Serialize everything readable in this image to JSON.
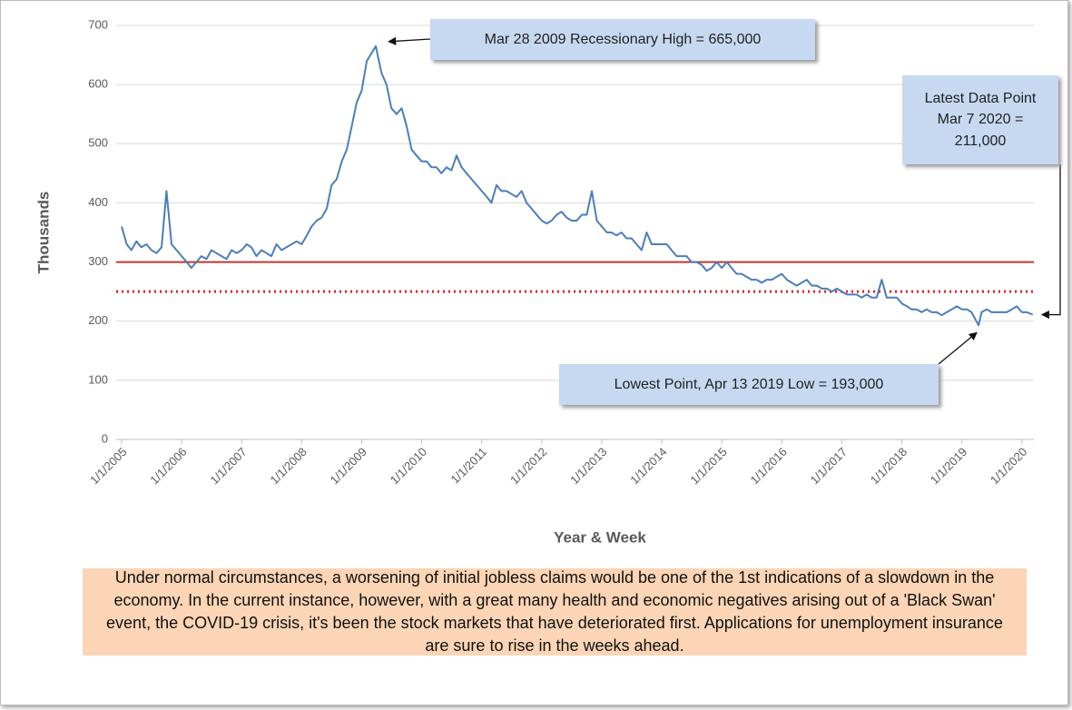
{
  "chart_data": {
    "type": "line",
    "y_label": "Thousands",
    "x_label": "Year & Week",
    "xlim": [
      "1/1/2005",
      "3/14/2020"
    ],
    "xticks": [
      "1/1/2005",
      "1/1/2006",
      "1/1/2007",
      "1/1/2008",
      "1/1/2009",
      "1/1/2010",
      "1/1/2011",
      "1/1/2012",
      "1/1/2013",
      "1/1/2014",
      "1/1/2015",
      "1/1/2016",
      "1/1/2017",
      "1/1/2018",
      "1/1/2019",
      "1/1/2020"
    ],
    "ylim": [
      0,
      700
    ],
    "yticks": [
      0,
      100,
      200,
      300,
      400,
      500,
      600,
      700
    ],
    "grid": true,
    "x": [
      "1/1/2005",
      "2/1/2005",
      "3/1/2005",
      "4/1/2005",
      "5/1/2005",
      "6/1/2005",
      "7/1/2005",
      "8/1/2005",
      "9/1/2005",
      "10/1/2005",
      "11/1/2005",
      "12/1/2005",
      "1/1/2006",
      "2/1/2006",
      "3/1/2006",
      "4/1/2006",
      "5/1/2006",
      "6/1/2006",
      "7/1/2006",
      "8/1/2006",
      "9/1/2006",
      "10/1/2006",
      "11/1/2006",
      "12/1/2006",
      "1/1/2007",
      "2/1/2007",
      "3/1/2007",
      "4/1/2007",
      "5/1/2007",
      "6/1/2007",
      "7/1/2007",
      "8/1/2007",
      "9/1/2007",
      "10/1/2007",
      "11/1/2007",
      "12/1/2007",
      "1/1/2008",
      "2/1/2008",
      "3/1/2008",
      "4/1/2008",
      "5/1/2008",
      "6/1/2008",
      "7/1/2008",
      "8/1/2008",
      "9/1/2008",
      "10/1/2008",
      "11/1/2008",
      "12/1/2008",
      "1/1/2009",
      "2/1/2009",
      "3/28/2009",
      "5/1/2009",
      "6/1/2009",
      "7/1/2009",
      "8/1/2009",
      "9/1/2009",
      "10/1/2009",
      "11/1/2009",
      "12/1/2009",
      "1/1/2010",
      "2/1/2010",
      "3/1/2010",
      "4/1/2010",
      "5/1/2010",
      "6/1/2010",
      "7/1/2010",
      "8/1/2010",
      "9/1/2010",
      "10/1/2010",
      "11/1/2010",
      "12/1/2010",
      "1/1/2011",
      "2/1/2011",
      "3/1/2011",
      "4/1/2011",
      "5/1/2011",
      "6/1/2011",
      "7/1/2011",
      "8/1/2011",
      "9/1/2011",
      "10/1/2011",
      "11/1/2011",
      "12/1/2011",
      "1/1/2012",
      "2/1/2012",
      "3/1/2012",
      "4/1/2012",
      "5/1/2012",
      "6/1/2012",
      "7/1/2012",
      "8/1/2012",
      "9/1/2012",
      "10/1/2012",
      "11/1/2012",
      "12/1/2012",
      "1/1/2013",
      "2/1/2013",
      "3/1/2013",
      "4/1/2013",
      "5/1/2013",
      "6/1/2013",
      "7/1/2013",
      "8/1/2013",
      "9/1/2013",
      "10/1/2013",
      "11/1/2013",
      "12/1/2013",
      "1/1/2014",
      "2/1/2014",
      "3/1/2014",
      "4/1/2014",
      "5/1/2014",
      "6/1/2014",
      "7/1/2014",
      "8/1/2014",
      "9/1/2014",
      "10/1/2014",
      "11/1/2014",
      "12/1/2014",
      "1/1/2015",
      "2/1/2015",
      "3/1/2015",
      "4/1/2015",
      "5/1/2015",
      "6/1/2015",
      "7/1/2015",
      "8/1/2015",
      "9/1/2015",
      "10/1/2015",
      "11/1/2015",
      "12/1/2015",
      "1/1/2016",
      "2/1/2016",
      "3/1/2016",
      "4/1/2016",
      "5/1/2016",
      "6/1/2016",
      "7/1/2016",
      "8/1/2016",
      "9/1/2016",
      "10/1/2016",
      "11/1/2016",
      "12/1/2016",
      "1/1/2017",
      "2/1/2017",
      "3/1/2017",
      "4/1/2017",
      "5/1/2017",
      "6/1/2017",
      "7/1/2017",
      "8/1/2017",
      "9/1/2017",
      "10/1/2017",
      "11/1/2017",
      "12/1/2017",
      "1/1/2018",
      "2/1/2018",
      "3/1/2018",
      "4/1/2018",
      "5/1/2018",
      "6/1/2018",
      "7/1/2018",
      "8/1/2018",
      "9/1/2018",
      "10/1/2018",
      "11/1/2018",
      "12/1/2018",
      "1/1/2019",
      "2/1/2019",
      "3/1/2019",
      "4/13/2019",
      "5/1/2019",
      "6/1/2019",
      "7/1/2019",
      "8/1/2019",
      "9/1/2019",
      "10/1/2019",
      "11/1/2019",
      "12/1/2019",
      "1/1/2020",
      "2/1/2020",
      "3/7/2020"
    ],
    "series": [
      {
        "color": "#4a7ebb",
        "values": [
          360,
          330,
          320,
          335,
          325,
          330,
          320,
          315,
          325,
          420,
          330,
          320,
          310,
          300,
          290,
          300,
          310,
          305,
          320,
          315,
          310,
          305,
          320,
          315,
          320,
          330,
          325,
          310,
          320,
          315,
          310,
          330,
          320,
          325,
          330,
          335,
          330,
          345,
          360,
          370,
          375,
          390,
          430,
          440,
          470,
          490,
          530,
          570,
          590,
          640,
          665,
          620,
          600,
          560,
          550,
          560,
          530,
          490,
          480,
          470,
          470,
          460,
          460,
          450,
          460,
          455,
          480,
          460,
          450,
          440,
          430,
          420,
          410,
          400,
          430,
          420,
          420,
          415,
          410,
          420,
          400,
          390,
          380,
          370,
          365,
          370,
          380,
          385,
          375,
          370,
          370,
          380,
          380,
          420,
          370,
          360,
          350,
          350,
          345,
          350,
          340,
          340,
          330,
          320,
          350,
          330,
          330,
          330,
          330,
          320,
          310,
          310,
          310,
          300,
          300,
          295,
          285,
          290,
          300,
          290,
          300,
          290,
          280,
          280,
          275,
          270,
          270,
          265,
          270,
          270,
          275,
          280,
          270,
          265,
          260,
          265,
          270,
          260,
          260,
          255,
          255,
          250,
          255,
          250,
          245,
          245,
          245,
          240,
          245,
          240,
          240,
          270,
          240,
          240,
          240,
          230,
          225,
          220,
          220,
          215,
          220,
          215,
          215,
          210,
          215,
          220,
          225,
          220,
          220,
          215,
          193,
          215,
          220,
          215,
          215,
          215,
          215,
          220,
          225,
          215,
          215,
          211
        ]
      }
    ],
    "reference_lines": [
      {
        "value": 300,
        "color": "#c0392b",
        "style": "solid"
      },
      {
        "value": 250,
        "color": "#e02020",
        "style": "dotted"
      }
    ],
    "annotations": [
      {
        "text": "Mar 28 2009 Recessionary High = 665,000",
        "x": "3/28/2009",
        "y": 665
      },
      {
        "text": "Latest Data Point Mar 7 2020 = 211,000",
        "x": "3/7/2020",
        "y": 211
      },
      {
        "text": "Lowest Point, Apr 13 2019 Low = 193,000",
        "x": "4/13/2019",
        "y": 193
      }
    ],
    "note": "Under normal circumstances, a worsening of initial jobless claims would be one of the 1st indications of a slowdown in the economy. In the current instance, however, with a great many health and economic negatives arising out of a 'Black Swan' event, the COVID-19 crisis, it's been the stock markets that have deteriorated first. Applications for unemployment insurance are sure to rise in the weeks ahead."
  }
}
